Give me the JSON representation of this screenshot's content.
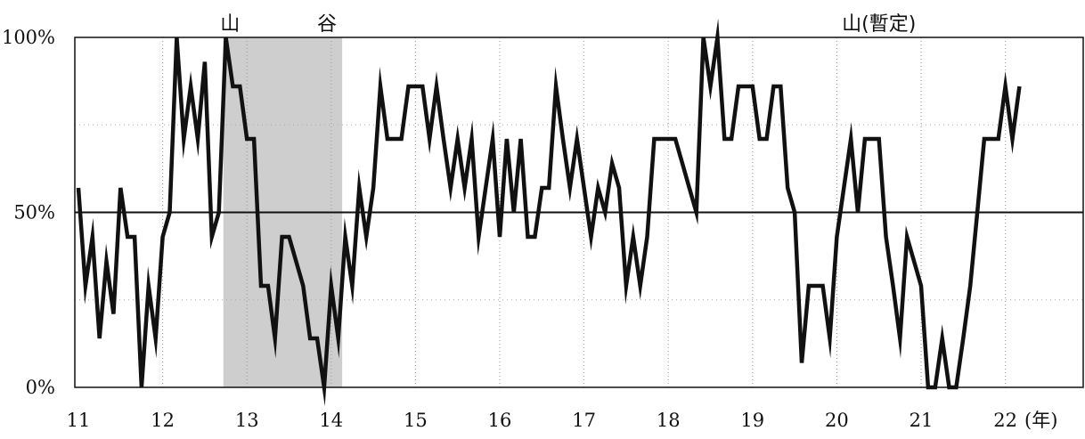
{
  "chart_data": {
    "type": "line",
    "title": "",
    "xlabel": "(年)",
    "ylabel": "",
    "xlim": [
      11,
      22.9
    ],
    "ylim": [
      0,
      100
    ],
    "grid": true,
    "reference_line": 50,
    "shaded_region": {
      "x": [
        12.72,
        14.13
      ]
    },
    "annotations": [
      {
        "text": "山",
        "x": 12.8
      },
      {
        "text": "谷",
        "x": 13.95
      },
      {
        "text": "山(暫定)",
        "x": 20.5
      }
    ],
    "y_ticks": [
      {
        "value": 0,
        "label": "0%"
      },
      {
        "value": 50,
        "label": "50%"
      },
      {
        "value": 100,
        "label": "100%"
      }
    ],
    "x_ticks": [
      {
        "value": 11,
        "label": "11"
      },
      {
        "value": 12,
        "label": "12"
      },
      {
        "value": 13,
        "label": "13"
      },
      {
        "value": 14,
        "label": "14"
      },
      {
        "value": 15,
        "label": "15"
      },
      {
        "value": 16,
        "label": "16"
      },
      {
        "value": 17,
        "label": "17"
      },
      {
        "value": 18,
        "label": "18"
      },
      {
        "value": 19,
        "label": "19"
      },
      {
        "value": 20,
        "label": "20"
      },
      {
        "value": 21,
        "label": "21"
      },
      {
        "value": 22,
        "label": "22"
      }
    ],
    "series": [
      {
        "x": [
          11.0,
          11.083,
          11.167,
          11.25,
          11.333,
          11.417,
          11.5,
          11.583,
          11.667,
          11.75,
          11.833,
          11.917,
          12.0,
          12.083,
          12.167,
          12.25,
          12.333,
          12.417,
          12.5,
          12.583,
          12.667,
          12.75,
          12.833,
          12.917,
          13.0,
          13.083,
          13.167,
          13.25,
          13.333,
          13.417,
          13.5,
          13.583,
          13.667,
          13.75,
          13.833,
          13.917,
          14.0,
          14.083,
          14.167,
          14.25,
          14.333,
          14.417,
          14.5,
          14.583,
          14.667,
          14.75,
          14.833,
          14.917,
          15.0,
          15.083,
          15.167,
          15.25,
          15.333,
          15.417,
          15.5,
          15.583,
          15.667,
          15.75,
          15.833,
          15.917,
          16.0,
          16.083,
          16.167,
          16.25,
          16.333,
          16.417,
          16.5,
          16.583,
          16.667,
          16.75,
          16.833,
          16.917,
          17.0,
          17.083,
          17.167,
          17.25,
          17.333,
          17.417,
          17.5,
          17.583,
          17.667,
          17.75,
          17.833,
          17.917,
          18.0,
          18.083,
          18.167,
          18.25,
          18.333,
          18.417,
          18.5,
          18.583,
          18.667,
          18.75,
          18.833,
          18.917,
          19.0,
          19.083,
          19.167,
          19.25,
          19.333,
          19.417,
          19.5,
          19.583,
          19.667,
          19.75,
          19.833,
          19.917,
          20.0,
          20.083,
          20.167,
          20.25,
          20.333,
          20.417,
          20.5,
          20.583,
          20.667,
          20.75,
          20.833,
          20.917,
          21.0,
          21.083,
          21.167,
          21.25,
          21.333,
          21.417,
          21.5,
          21.583,
          21.667,
          21.75,
          21.833,
          21.917,
          22.0,
          22.083,
          22.167
        ],
        "values": [
          57,
          29,
          43,
          14,
          36,
          21,
          57,
          43,
          43,
          0,
          29,
          14,
          43,
          50,
          100,
          71,
          86,
          71,
          93,
          43,
          50,
          100,
          86,
          86,
          71,
          71,
          29,
          29,
          14,
          43,
          43,
          36,
          29,
          14,
          14,
          0,
          29,
          14,
          43,
          29,
          57,
          43,
          57,
          86,
          71,
          71,
          71,
          86,
          86,
          86,
          71,
          86,
          71,
          57,
          71,
          57,
          71,
          43,
          57,
          71,
          43,
          71,
          50,
          71,
          43,
          43,
          57,
          57,
          86,
          71,
          57,
          71,
          57,
          43,
          57,
          50,
          64,
          57,
          29,
          43,
          29,
          43,
          71,
          71,
          71,
          71,
          64,
          57,
          50,
          100,
          86,
          100,
          71,
          71,
          86,
          86,
          86,
          71,
          71,
          86,
          86,
          57,
          50,
          7,
          29,
          29,
          29,
          14,
          43,
          57,
          71,
          50,
          71,
          71,
          71,
          43,
          29,
          14,
          43,
          36,
          29,
          0,
          0,
          14,
          0,
          0,
          14,
          29,
          50,
          71,
          71,
          71,
          86,
          71,
          86
        ]
      }
    ]
  }
}
